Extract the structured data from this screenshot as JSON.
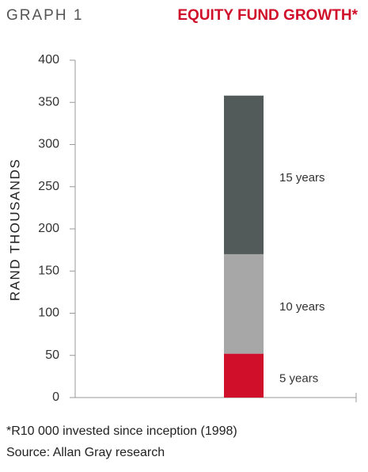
{
  "chart_data": {
    "type": "stacked_bar",
    "label": "GRAPH 1",
    "title": "EQUITY FUND GROWTH*",
    "y_label": "RAND THOUSANDS",
    "categories": [
      null
    ],
    "series": [
      {
        "name": "5 years",
        "color": "#d0102b",
        "values": [
          52
        ]
      },
      {
        "name": "10 years",
        "color": "#a7a7a7",
        "values": [
          118
        ]
      },
      {
        "name": "15 years",
        "color": "#535a5a",
        "values": [
          188
        ]
      }
    ],
    "ylim": [
      0,
      400
    ],
    "yticks": [
      0,
      50,
      100,
      150,
      200,
      250,
      300,
      350,
      400
    ],
    "notes": [
      "*R10 000 invested since inception (1998)",
      "Source: Allan Gray research"
    ]
  }
}
